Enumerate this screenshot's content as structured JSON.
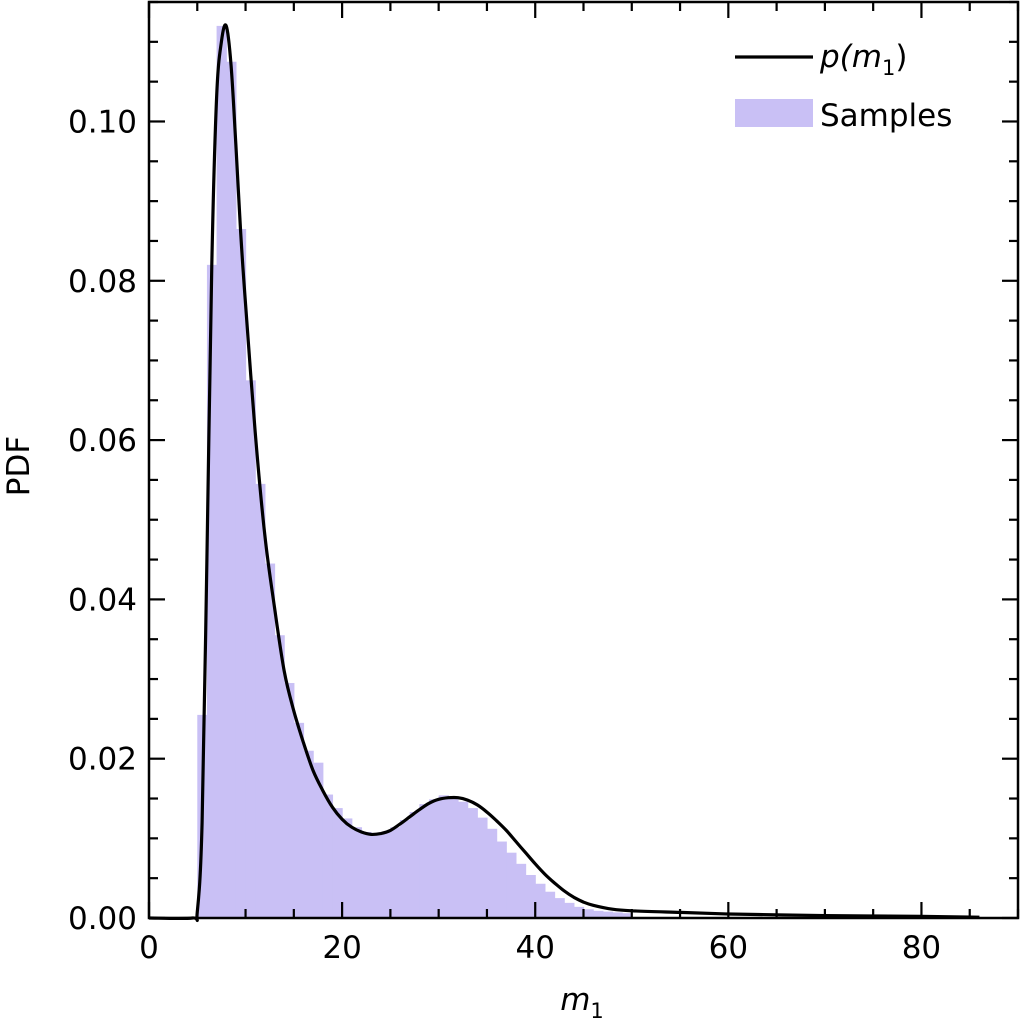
{
  "chart_data": {
    "type": "line",
    "title": "",
    "xlabel_var": "m",
    "xlabel_sub": "1",
    "ylabel": "PDF",
    "xlim": [
      0,
      90
    ],
    "ylim": [
      0,
      0.115
    ],
    "grid": false,
    "legend_placement": "top-right",
    "x_ticks": [
      0,
      20,
      40,
      60,
      80
    ],
    "x_tick_labels": [
      "0",
      "20",
      "40",
      "60",
      "80"
    ],
    "y_ticks": [
      0,
      0.02,
      0.04,
      0.06,
      0.08,
      0.1
    ],
    "y_tick_labels": [
      "0.00",
      "0.02",
      "0.04",
      "0.06",
      "0.08",
      "0.10"
    ],
    "legend": {
      "line_prefix": "p(",
      "line_var": "m",
      "line_sub": "1",
      "line_suffix": ")",
      "hist_label": "Samples"
    },
    "colors": {
      "line": "#000000",
      "hist": "#c9c0f5"
    },
    "series": [
      {
        "name": "p(m1)",
        "kind": "line",
        "x": [
          0,
          4.5,
          5.0,
          5.5,
          6.0,
          6.5,
          7.0,
          7.5,
          8.0,
          8.5,
          9.0,
          9.5,
          10,
          11,
          12,
          13,
          14,
          15,
          16,
          17,
          18,
          19,
          20,
          21,
          22,
          23,
          24,
          25,
          26,
          27,
          28,
          29,
          30,
          31,
          32,
          33,
          34,
          35,
          36,
          37,
          38,
          39,
          40,
          41,
          42,
          43,
          44,
          45,
          46,
          48,
          50,
          55,
          60,
          65,
          70,
          75,
          80,
          86
        ],
        "y": [
          0,
          0,
          0.0008,
          0.012,
          0.045,
          0.082,
          0.103,
          0.11,
          0.112,
          0.107,
          0.097,
          0.086,
          0.077,
          0.061,
          0.048,
          0.039,
          0.031,
          0.026,
          0.022,
          0.0185,
          0.016,
          0.0139,
          0.0124,
          0.0114,
          0.0108,
          0.0105,
          0.0106,
          0.011,
          0.0118,
          0.0127,
          0.0136,
          0.0144,
          0.0149,
          0.0151,
          0.0151,
          0.0148,
          0.0142,
          0.0133,
          0.0122,
          0.011,
          0.0096,
          0.0082,
          0.0068,
          0.0055,
          0.0044,
          0.0034,
          0.0026,
          0.002,
          0.0016,
          0.0011,
          0.0009,
          0.0007,
          0.0005,
          0.0004,
          0.0003,
          0.00025,
          0.0002,
          0.0001
        ]
      },
      {
        "name": "Samples",
        "kind": "histogram",
        "bin_width": 1,
        "bin_start": 5,
        "values": [
          0.0255,
          0.082,
          0.112,
          0.1075,
          0.0865,
          0.0675,
          0.0545,
          0.0445,
          0.0355,
          0.0295,
          0.0245,
          0.021,
          0.0195,
          0.0155,
          0.0138,
          0.0125,
          0.0114,
          0.0108,
          0.0104,
          0.0108,
          0.0114,
          0.0123,
          0.0133,
          0.0143,
          0.0149,
          0.0154,
          0.0152,
          0.0146,
          0.0138,
          0.0126,
          0.0112,
          0.0096,
          0.0082,
          0.0068,
          0.0054,
          0.0043,
          0.0033,
          0.0025,
          0.0019,
          0.0014,
          0.0011,
          0.0009,
          0.0008,
          0.0007,
          0.0006
        ]
      }
    ]
  }
}
